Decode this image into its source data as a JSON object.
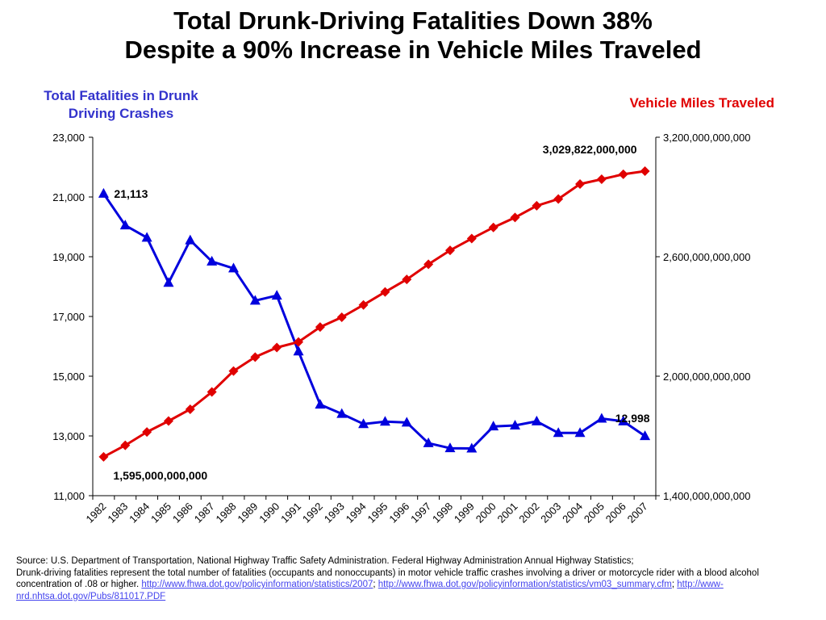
{
  "chart_data": {
    "type": "line",
    "title_line1": "Total Drunk-Driving Fatalities Down 38%",
    "title_line2": "Despite a 90% Increase in Vehicle Miles Traveled",
    "left_axis": {
      "title": "Total Fatalities in Drunk Driving Crashes",
      "range": [
        11000,
        23000
      ],
      "ticks": [
        "11,000",
        "13,000",
        "15,000",
        "17,000",
        "19,000",
        "21,000",
        "23,000"
      ],
      "tick_values": [
        11000,
        13000,
        15000,
        17000,
        19000,
        21000,
        23000
      ],
      "color": "#3333cc"
    },
    "right_axis": {
      "title": "Vehicle Miles Traveled",
      "range": [
        1400000000000,
        3200000000000
      ],
      "ticks": [
        "1,400,000,000,000",
        "2,000,000,000,000",
        "2,600,000,000,000",
        "3,200,000,000,000"
      ],
      "tick_values": [
        1400000000000,
        2000000000000,
        2600000000000,
        3200000000000
      ],
      "color": "#e00000"
    },
    "categories": [
      "1982",
      "1983",
      "1984",
      "1985",
      "1986",
      "1987",
      "1988",
      "1989",
      "1990",
      "1991",
      "1992",
      "1993",
      "1994",
      "1995",
      "1996",
      "1997",
      "1998",
      "1999",
      "2000",
      "2001",
      "2002",
      "2003",
      "2004",
      "2005",
      "2006",
      "2007"
    ],
    "series": [
      {
        "name": "Total Fatalities in Drunk Driving Crashes",
        "axis": "left",
        "color": "#0000dd",
        "marker": "triangle",
        "values": [
          21113,
          20050,
          19640,
          18130,
          19550,
          18840,
          18610,
          17530,
          17700,
          15830,
          14050,
          13740,
          13400,
          13480,
          13450,
          12760,
          12590,
          12580,
          13320,
          13350,
          13490,
          13100,
          13100,
          13580,
          13490,
          12998
        ]
      },
      {
        "name": "Vehicle Miles Traveled",
        "axis": "right",
        "color": "#e00000",
        "marker": "diamond",
        "values": [
          1595000000000,
          1653000000000,
          1720000000000,
          1775000000000,
          1834000000000,
          1921000000000,
          2026000000000,
          2096000000000,
          2144000000000,
          2172000000000,
          2247000000000,
          2296000000000,
          2358000000000,
          2423000000000,
          2486000000000,
          2562000000000,
          2632000000000,
          2691000000000,
          2747000000000,
          2797000000000,
          2856000000000,
          2890000000000,
          2965000000000,
          2989000000000,
          3014000000000,
          3029822000000
        ]
      }
    ],
    "annotations": {
      "fatal_start": "21,113",
      "fatal_end": "12,998",
      "vmt_start": "1,595,000,000,000",
      "vmt_end": "3,029,822,000,000"
    },
    "grid": false,
    "legend": "axis titles"
  },
  "source": {
    "line1": "Source: U.S. Department of Transportation, National Highway Traffic Safety Administration.  Federal Highway Administration Annual Highway Statistics;",
    "line2": "Drunk-driving fatalities represent the total number of fatalities (occupants and nonoccupants) in motor vehicle traffic crashes involving a driver or motorcycle rider with a blood alcohol concentration of .08 or higher.",
    "link1": "http://www.fhwa.dot.gov/policyinformation/statistics/2007",
    "sep1": ";",
    "link2": "http://www.fhwa.dot.gov/policyinformation/statistics/vm03_summary.cfm",
    "sep2": ";",
    "link3": "http://www-nrd.nhtsa.dot.gov/Pubs/811017.PDF"
  }
}
